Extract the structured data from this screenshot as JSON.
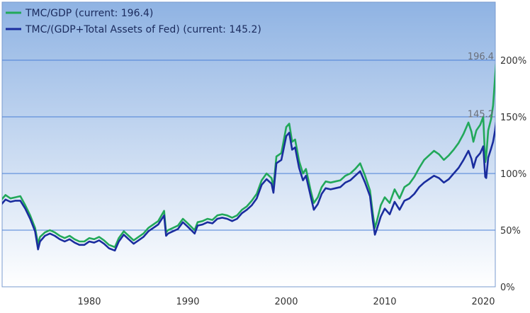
{
  "chart_data": {
    "type": "line",
    "title": "",
    "xlabel": "",
    "ylabel": "",
    "xlim": [
      1971,
      2021.3
    ],
    "ylim": [
      0,
      240
    ],
    "x_ticks": [
      1980,
      1990,
      2000,
      2010,
      2020
    ],
    "y_ticks": [
      0,
      50,
      100,
      150,
      200
    ],
    "y_tick_labels": [
      "0%",
      "50%",
      "100%",
      "150%",
      "200%"
    ],
    "grid": "horizontal",
    "legend_position": "top-left",
    "background": {
      "top": "#8fb3e3",
      "bottom": "#ffffff"
    },
    "series": [
      {
        "name": "TMC/GDP (current: 196.4)",
        "color": "#22a85a",
        "points": [
          [
            1971.0,
            76
          ],
          [
            1971.5,
            81
          ],
          [
            1972.0,
            78
          ],
          [
            1972.5,
            79
          ],
          [
            1973.0,
            80
          ],
          [
            1973.5,
            72
          ],
          [
            1974.0,
            63
          ],
          [
            1974.5,
            52
          ],
          [
            1974.8,
            38
          ],
          [
            1975.0,
            44
          ],
          [
            1975.5,
            48
          ],
          [
            1976.0,
            50
          ],
          [
            1976.5,
            48
          ],
          [
            1977.0,
            45
          ],
          [
            1977.5,
            43
          ],
          [
            1978.0,
            45
          ],
          [
            1978.5,
            42
          ],
          [
            1979.0,
            40
          ],
          [
            1979.5,
            40
          ],
          [
            1980.0,
            43
          ],
          [
            1980.5,
            42
          ],
          [
            1981.0,
            44
          ],
          [
            1981.5,
            41
          ],
          [
            1982.0,
            37
          ],
          [
            1982.6,
            35
          ],
          [
            1983.0,
            43
          ],
          [
            1983.5,
            49
          ],
          [
            1984.0,
            45
          ],
          [
            1984.5,
            41
          ],
          [
            1985.0,
            44
          ],
          [
            1985.5,
            47
          ],
          [
            1986.0,
            52
          ],
          [
            1986.5,
            55
          ],
          [
            1987.0,
            58
          ],
          [
            1987.6,
            67
          ],
          [
            1987.8,
            48
          ],
          [
            1988.0,
            50
          ],
          [
            1988.5,
            52
          ],
          [
            1989.0,
            54
          ],
          [
            1989.5,
            60
          ],
          [
            1990.0,
            56
          ],
          [
            1990.7,
            50
          ],
          [
            1991.0,
            57
          ],
          [
            1991.5,
            58
          ],
          [
            1992.0,
            60
          ],
          [
            1992.5,
            59
          ],
          [
            1993.0,
            63
          ],
          [
            1993.5,
            64
          ],
          [
            1994.0,
            63
          ],
          [
            1994.5,
            61
          ],
          [
            1995.0,
            63
          ],
          [
            1995.5,
            68
          ],
          [
            1996.0,
            71
          ],
          [
            1996.5,
            76
          ],
          [
            1997.0,
            82
          ],
          [
            1997.5,
            94
          ],
          [
            1998.0,
            100
          ],
          [
            1998.5,
            96
          ],
          [
            1998.7,
            88
          ],
          [
            1999.0,
            115
          ],
          [
            1999.5,
            118
          ],
          [
            2000.0,
            141
          ],
          [
            2000.3,
            144
          ],
          [
            2000.6,
            128
          ],
          [
            2000.9,
            130
          ],
          [
            2001.3,
            111
          ],
          [
            2001.7,
            100
          ],
          [
            2002.0,
            104
          ],
          [
            2002.5,
            84
          ],
          [
            2002.8,
            74
          ],
          [
            2003.2,
            79
          ],
          [
            2003.6,
            88
          ],
          [
            2004.0,
            93
          ],
          [
            2004.5,
            92
          ],
          [
            2005.0,
            93
          ],
          [
            2005.5,
            94
          ],
          [
            2006.0,
            98
          ],
          [
            2006.5,
            100
          ],
          [
            2007.0,
            104
          ],
          [
            2007.5,
            109
          ],
          [
            2008.0,
            98
          ],
          [
            2008.5,
            85
          ],
          [
            2008.8,
            64
          ],
          [
            2009.0,
            52
          ],
          [
            2009.2,
            58
          ],
          [
            2009.6,
            72
          ],
          [
            2010.0,
            79
          ],
          [
            2010.5,
            74
          ],
          [
            2011.0,
            86
          ],
          [
            2011.5,
            78
          ],
          [
            2012.0,
            88
          ],
          [
            2012.5,
            91
          ],
          [
            2013.0,
            97
          ],
          [
            2013.5,
            105
          ],
          [
            2014.0,
            112
          ],
          [
            2014.5,
            116
          ],
          [
            2015.0,
            120
          ],
          [
            2015.5,
            117
          ],
          [
            2016.0,
            112
          ],
          [
            2016.5,
            116
          ],
          [
            2017.0,
            121
          ],
          [
            2017.5,
            127
          ],
          [
            2018.0,
            135
          ],
          [
            2018.5,
            145
          ],
          [
            2018.8,
            137
          ],
          [
            2019.0,
            128
          ],
          [
            2019.3,
            138
          ],
          [
            2019.7,
            143
          ],
          [
            2020.0,
            150
          ],
          [
            2020.2,
            110
          ],
          [
            2020.3,
            115
          ],
          [
            2020.5,
            138
          ],
          [
            2020.8,
            148
          ],
          [
            2021.0,
            160
          ],
          [
            2021.2,
            185
          ],
          [
            2021.3,
            196.4
          ]
        ]
      },
      {
        "name": "TMC/(GDP+Total Assets of Fed) (current: 145.2)",
        "color": "#1a2d9e",
        "points": [
          [
            1971.0,
            72
          ],
          [
            1971.5,
            77
          ],
          [
            1972.0,
            75
          ],
          [
            1972.5,
            76
          ],
          [
            1973.0,
            76
          ],
          [
            1973.5,
            69
          ],
          [
            1974.0,
            60
          ],
          [
            1974.5,
            49
          ],
          [
            1974.8,
            33
          ],
          [
            1975.0,
            40
          ],
          [
            1975.5,
            45
          ],
          [
            1976.0,
            47
          ],
          [
            1976.5,
            45
          ],
          [
            1977.0,
            42
          ],
          [
            1977.5,
            40
          ],
          [
            1978.0,
            42
          ],
          [
            1978.5,
            39
          ],
          [
            1979.0,
            37
          ],
          [
            1979.5,
            37
          ],
          [
            1980.0,
            40
          ],
          [
            1980.5,
            39
          ],
          [
            1981.0,
            41
          ],
          [
            1981.5,
            38
          ],
          [
            1982.0,
            34
          ],
          [
            1982.6,
            32
          ],
          [
            1983.0,
            40
          ],
          [
            1983.5,
            46
          ],
          [
            1984.0,
            42
          ],
          [
            1984.5,
            38
          ],
          [
            1985.0,
            41
          ],
          [
            1985.5,
            44
          ],
          [
            1986.0,
            49
          ],
          [
            1986.5,
            52
          ],
          [
            1987.0,
            55
          ],
          [
            1987.6,
            63
          ],
          [
            1987.8,
            45
          ],
          [
            1988.0,
            47
          ],
          [
            1988.5,
            49
          ],
          [
            1989.0,
            51
          ],
          [
            1989.5,
            57
          ],
          [
            1990.0,
            53
          ],
          [
            1990.7,
            47
          ],
          [
            1991.0,
            54
          ],
          [
            1991.5,
            55
          ],
          [
            1992.0,
            57
          ],
          [
            1992.5,
            56
          ],
          [
            1993.0,
            60
          ],
          [
            1993.5,
            61
          ],
          [
            1994.0,
            60
          ],
          [
            1994.5,
            58
          ],
          [
            1995.0,
            60
          ],
          [
            1995.5,
            65
          ],
          [
            1996.0,
            68
          ],
          [
            1996.5,
            72
          ],
          [
            1997.0,
            78
          ],
          [
            1997.5,
            90
          ],
          [
            1998.0,
            95
          ],
          [
            1998.5,
            91
          ],
          [
            1998.7,
            83
          ],
          [
            1999.0,
            109
          ],
          [
            1999.5,
            112
          ],
          [
            2000.0,
            133
          ],
          [
            2000.3,
            136
          ],
          [
            2000.6,
            121
          ],
          [
            2000.9,
            123
          ],
          [
            2001.3,
            105
          ],
          [
            2001.7,
            94
          ],
          [
            2002.0,
            98
          ],
          [
            2002.5,
            79
          ],
          [
            2002.8,
            68
          ],
          [
            2003.2,
            73
          ],
          [
            2003.6,
            82
          ],
          [
            2004.0,
            87
          ],
          [
            2004.5,
            86
          ],
          [
            2005.0,
            87
          ],
          [
            2005.5,
            88
          ],
          [
            2006.0,
            92
          ],
          [
            2006.5,
            94
          ],
          [
            2007.0,
            98
          ],
          [
            2007.5,
            102
          ],
          [
            2008.0,
            92
          ],
          [
            2008.5,
            80
          ],
          [
            2008.8,
            58
          ],
          [
            2009.0,
            46
          ],
          [
            2009.2,
            51
          ],
          [
            2009.6,
            62
          ],
          [
            2010.0,
            69
          ],
          [
            2010.5,
            64
          ],
          [
            2011.0,
            75
          ],
          [
            2011.5,
            68
          ],
          [
            2012.0,
            76
          ],
          [
            2012.5,
            78
          ],
          [
            2013.0,
            82
          ],
          [
            2013.5,
            88
          ],
          [
            2014.0,
            92
          ],
          [
            2014.5,
            95
          ],
          [
            2015.0,
            98
          ],
          [
            2015.5,
            96
          ],
          [
            2016.0,
            92
          ],
          [
            2016.5,
            95
          ],
          [
            2017.0,
            100
          ],
          [
            2017.5,
            105
          ],
          [
            2018.0,
            112
          ],
          [
            2018.5,
            120
          ],
          [
            2018.8,
            113
          ],
          [
            2019.0,
            105
          ],
          [
            2019.3,
            114
          ],
          [
            2019.7,
            118
          ],
          [
            2020.0,
            124
          ],
          [
            2020.2,
            97
          ],
          [
            2020.3,
            96
          ],
          [
            2020.5,
            114
          ],
          [
            2020.8,
            122
          ],
          [
            2021.0,
            128
          ],
          [
            2021.2,
            138
          ],
          [
            2021.3,
            145.2
          ]
        ]
      }
    ],
    "annotations": [
      {
        "text": "196.4",
        "x": 2021.3,
        "y": 196.4
      },
      {
        "text": "145.2",
        "x": 2021.3,
        "y": 145.2
      }
    ]
  }
}
